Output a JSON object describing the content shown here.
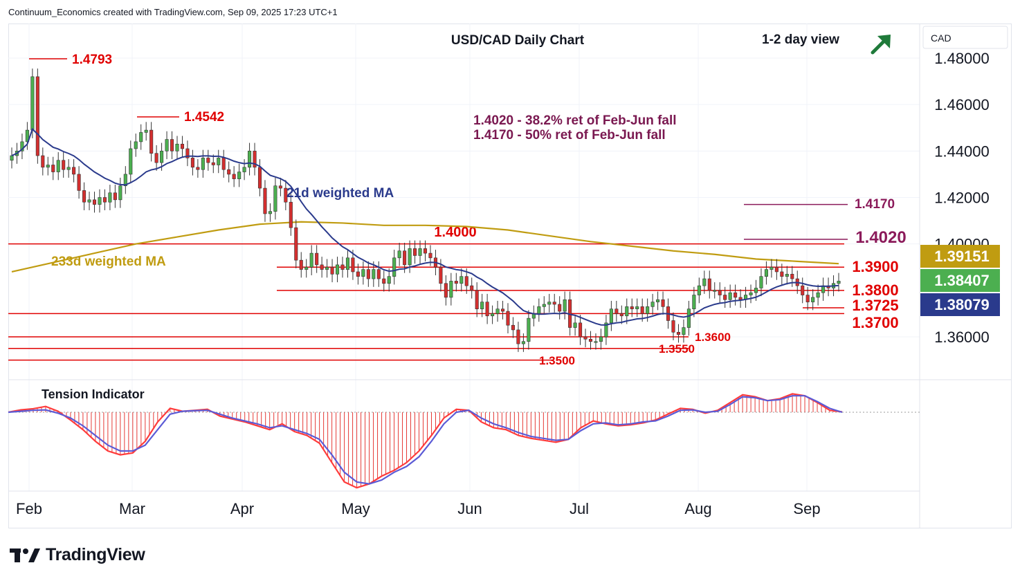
{
  "header": {
    "attribution": "Continuum_Economics created with TradingView.com, Sep 09, 2025 17:23 UTC+1"
  },
  "footer": {
    "brand": "TradingView"
  },
  "chart_data": {
    "type": "candlestick",
    "title": "USD/CAD Daily Chart",
    "view_label": "1-2 day view",
    "trend_arrow": "up-right",
    "currency_label": "CAD",
    "y_axis": {
      "ticks": [
        1.48,
        1.46,
        1.44,
        1.42,
        1.4,
        1.36
      ],
      "tick_labels": [
        "1.48000",
        "1.46000",
        "1.44000",
        "1.42000",
        "1.40000",
        "1.36000"
      ],
      "ylim": [
        1.345,
        1.495
      ]
    },
    "x_axis": {
      "labels": [
        "Feb",
        "Mar",
        "Apr",
        "May",
        "Jun",
        "Jul",
        "Aug",
        "Sep"
      ]
    },
    "price_tags": [
      {
        "label": "1.39151",
        "series": "233d weighted MA",
        "value": 1.39151,
        "color": "#c09c11"
      },
      {
        "label": "1.38407",
        "series": "last",
        "value": 1.38407,
        "color": "#4caf50"
      },
      {
        "label": "1.38079",
        "series": "21d weighted MA",
        "value": 1.38079,
        "color": "#2a3a8c"
      }
    ],
    "levels": [
      {
        "label": "1.4000",
        "value": 1.4,
        "color": "#e00000"
      },
      {
        "label": "1.3900",
        "value": 1.39,
        "color": "#e00000"
      },
      {
        "label": "1.3800",
        "value": 1.38,
        "color": "#e00000"
      },
      {
        "label": "1.3725",
        "value": 1.3725,
        "color": "#e00000"
      },
      {
        "label": "1.3700",
        "value": 1.37,
        "color": "#e00000"
      },
      {
        "label": "1.3600",
        "value": 1.36,
        "color": "#e00000"
      },
      {
        "label": "1.3550",
        "value": 1.355,
        "color": "#e00000"
      },
      {
        "label": "1.3500",
        "value": 1.35,
        "color": "#e00000"
      }
    ],
    "resistance_targets": [
      {
        "label": "1.4170",
        "value": 1.417,
        "color": "#8b1a5a"
      },
      {
        "label": "1.4020",
        "value": 1.402,
        "color": "#8b1a5a"
      }
    ],
    "peaks": [
      {
        "label": "1.4793",
        "value": 1.4793
      },
      {
        "label": "1.4542",
        "value": 1.4542
      }
    ],
    "notes": [
      "1.4020 - 38.2% ret of Feb-Jun fall",
      "1.4170 - 50% ret of Feb-Jun fall"
    ],
    "ma_labels": {
      "ma21": "21d weighted MA",
      "ma233": "233d weighted MA"
    },
    "colors": {
      "up": "#4caf50",
      "down": "#d32f2f",
      "ma21": "#2a3a8c",
      "ma233": "#c09c11",
      "level": "#e00000",
      "target": "#8b1a5a",
      "tension_fast": "#ff3b3b",
      "tension_slow": "#5b5bd6"
    },
    "series_close": [
      1.438,
      1.44,
      1.444,
      1.449,
      1.472,
      1.438,
      1.433,
      1.434,
      1.431,
      1.436,
      1.432,
      1.433,
      1.43,
      1.423,
      1.418,
      1.419,
      1.417,
      1.42,
      1.418,
      1.422,
      1.419,
      1.425,
      1.43,
      1.441,
      1.444,
      1.448,
      1.449,
      1.439,
      1.435,
      1.44,
      1.445,
      1.44,
      1.443,
      1.441,
      1.437,
      1.433,
      1.432,
      1.437,
      1.435,
      1.434,
      1.437,
      1.432,
      1.43,
      1.428,
      1.431,
      1.433,
      1.44,
      1.433,
      1.424,
      1.413,
      1.414,
      1.425,
      1.424,
      1.418,
      1.407,
      1.393,
      1.389,
      1.39,
      1.396,
      1.391,
      1.389,
      1.39,
      1.387,
      1.391,
      1.389,
      1.394,
      1.388,
      1.386,
      1.389,
      1.385,
      1.389,
      1.385,
      1.383,
      1.386,
      1.394,
      1.397,
      1.391,
      1.398,
      1.395,
      1.398,
      1.396,
      1.394,
      1.39,
      1.383,
      1.377,
      1.384,
      1.383,
      1.386,
      1.382,
      1.38,
      1.372,
      1.375,
      1.369,
      1.37,
      1.372,
      1.371,
      1.365,
      1.363,
      1.357,
      1.358,
      1.368,
      1.37,
      1.373,
      1.374,
      1.375,
      1.374,
      1.371,
      1.376,
      1.364,
      1.366,
      1.36,
      1.359,
      1.358,
      1.358,
      1.36,
      1.366,
      1.372,
      1.37,
      1.369,
      1.373,
      1.372,
      1.373,
      1.37,
      1.373,
      1.375,
      1.376,
      1.373,
      1.367,
      1.362,
      1.361,
      1.364,
      1.372,
      1.378,
      1.382,
      1.385,
      1.38,
      1.38,
      1.378,
      1.376,
      1.379,
      1.377,
      1.376,
      1.378,
      1.379,
      1.381,
      1.386,
      1.389,
      1.39,
      1.388,
      1.386,
      1.387,
      1.385,
      1.382,
      1.378,
      1.375,
      1.377,
      1.379,
      1.382,
      1.381,
      1.383,
      1.384
    ],
    "tension": {
      "fast": [
        0,
        0.12,
        0.18,
        0.3,
        0.05,
        -0.4,
        -0.9,
        -1.5,
        -2.0,
        -2.2,
        -2.1,
        -1.5,
        -0.5,
        0.2,
        0.05,
        0.1,
        0.15,
        -0.2,
        -0.35,
        -0.5,
        -0.7,
        -0.9,
        -0.6,
        -1.0,
        -1.2,
        -1.6,
        -2.6,
        -3.6,
        -3.9,
        -3.7,
        -3.3,
        -3.0,
        -2.6,
        -2.0,
        -1.2,
        -0.3,
        0.15,
        0.1,
        -0.5,
        -0.8,
        -0.9,
        -1.2,
        -1.35,
        -1.45,
        -1.55,
        -1.4,
        -0.8,
        -0.45,
        -0.6,
        -0.7,
        -0.65,
        -0.55,
        -0.4,
        -0.1,
        0.2,
        0.15,
        -0.05,
        0.1,
        0.5,
        0.9,
        0.8,
        0.6,
        0.7,
        0.95,
        0.85,
        0.5,
        0.1,
        0.02
      ],
      "slow": [
        0,
        0.05,
        0.1,
        0.12,
        -0.05,
        -0.3,
        -0.7,
        -1.2,
        -1.7,
        -2.0,
        -2.0,
        -1.7,
        -0.9,
        -0.1,
        0.05,
        0.08,
        0.1,
        -0.1,
        -0.3,
        -0.45,
        -0.6,
        -0.8,
        -0.7,
        -0.9,
        -1.1,
        -1.4,
        -2.2,
        -3.1,
        -3.6,
        -3.7,
        -3.5,
        -3.1,
        -2.8,
        -2.3,
        -1.5,
        -0.6,
        0.0,
        0.1,
        -0.3,
        -0.6,
        -0.8,
        -1.05,
        -1.25,
        -1.35,
        -1.45,
        -1.4,
        -0.95,
        -0.6,
        -0.55,
        -0.65,
        -0.6,
        -0.5,
        -0.45,
        -0.2,
        0.1,
        0.12,
        0.0,
        0.05,
        0.4,
        0.8,
        0.75,
        0.6,
        0.65,
        0.85,
        0.85,
        0.55,
        0.2,
        0.0
      ]
    },
    "tension_label": "Tension Indicator"
  }
}
